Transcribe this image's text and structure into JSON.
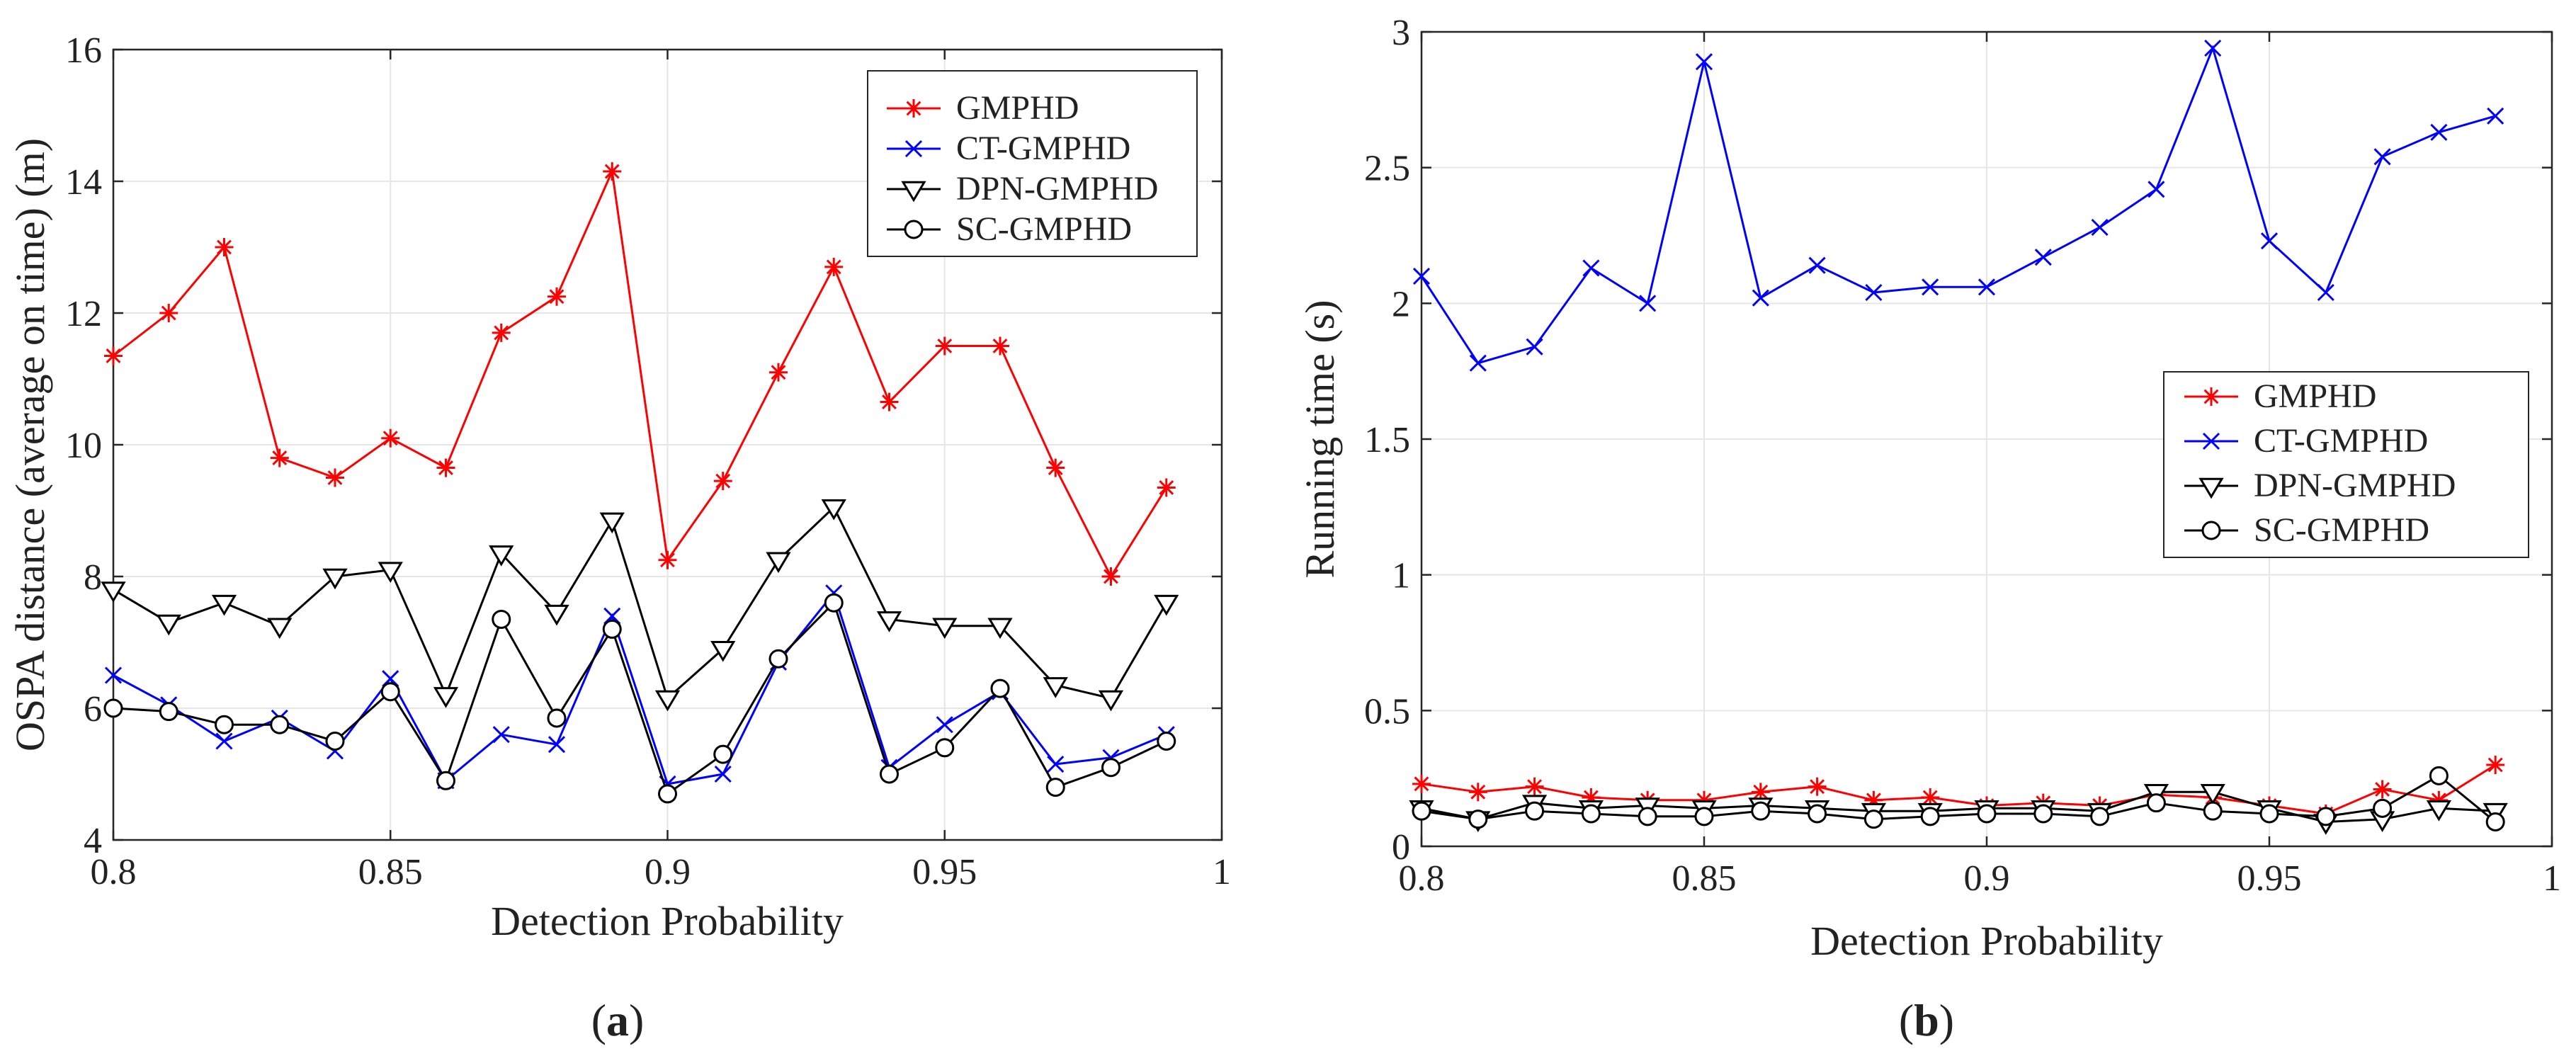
{
  "colors": {
    "red": "#ff0000",
    "blue": "#0000ff",
    "black": "#000000",
    "grid": "#e6e6e6"
  },
  "chart_data": [
    {
      "id": "a",
      "type": "line",
      "caption_open": "(",
      "caption_letter": "a",
      "caption_close": ")",
      "xlabel": "Detection Probability",
      "ylabel": "OSPA distance (average on time) (m)",
      "xlim": [
        0.8,
        1
      ],
      "ylim": [
        4,
        16
      ],
      "xticks": [
        0.8,
        0.85,
        0.9,
        0.95,
        1
      ],
      "xtick_labels": [
        "0.8",
        "0.85",
        "0.9",
        "0.95",
        "1"
      ],
      "yticks": [
        4,
        6,
        8,
        10,
        12,
        14,
        16
      ],
      "ytick_labels": [
        "4",
        "6",
        "8",
        "10",
        "12",
        "14",
        "16"
      ],
      "grid": true,
      "legend_position": "top-right",
      "x": [
        0.8,
        0.81,
        0.82,
        0.83,
        0.84,
        0.85,
        0.86,
        0.87,
        0.88,
        0.89,
        0.9,
        0.91,
        0.92,
        0.93,
        0.94,
        0.95,
        0.96,
        0.97,
        0.98,
        0.99
      ],
      "series": [
        {
          "name": "GMPHD",
          "color": "#ff0000",
          "marker": "asterisk",
          "values": [
            11.35,
            12.0,
            13.0,
            9.8,
            9.5,
            10.1,
            9.65,
            11.7,
            12.25,
            14.15,
            8.25,
            9.45,
            11.1,
            12.7,
            10.65,
            11.5,
            11.5,
            9.65,
            8.0,
            9.35
          ]
        },
        {
          "name": "CT-GMPHD",
          "color": "#0000ff",
          "marker": "cross",
          "values": [
            6.5,
            6.05,
            5.5,
            5.85,
            5.35,
            6.45,
            4.9,
            5.6,
            5.45,
            7.4,
            4.85,
            5.0,
            6.7,
            7.75,
            5.1,
            5.75,
            6.25,
            5.15,
            5.25,
            5.6
          ]
        },
        {
          "name": "DPN-GMPHD",
          "color": "#000000",
          "marker": "triangle-down",
          "values": [
            7.8,
            7.3,
            7.6,
            7.25,
            8.0,
            8.1,
            6.2,
            8.35,
            7.45,
            8.85,
            6.15,
            6.9,
            8.25,
            9.05,
            7.35,
            7.25,
            7.25,
            6.35,
            6.15,
            7.6
          ]
        },
        {
          "name": "SC-GMPHD",
          "color": "#000000",
          "marker": "circle",
          "values": [
            6.0,
            5.95,
            5.75,
            5.75,
            5.5,
            6.25,
            4.9,
            7.35,
            5.85,
            7.2,
            4.7,
            5.3,
            6.75,
            7.6,
            5.0,
            5.4,
            6.3,
            4.8,
            5.1,
            5.5
          ]
        }
      ]
    },
    {
      "id": "b",
      "type": "line",
      "caption_open": "(",
      "caption_letter": "b",
      "caption_close": ")",
      "xlabel": "Detection Probability",
      "ylabel": "Running time (s)",
      "xlim": [
        0.8,
        1
      ],
      "ylim": [
        0,
        3
      ],
      "xticks": [
        0.8,
        0.85,
        0.9,
        0.95,
        1
      ],
      "xtick_labels": [
        "0.8",
        "0.85",
        "0.9",
        "0.95",
        "1"
      ],
      "yticks": [
        0,
        0.5,
        1,
        1.5,
        2,
        2.5,
        3
      ],
      "ytick_labels": [
        "0",
        "0.5",
        "1",
        "1.5",
        "2",
        "2.5",
        "3"
      ],
      "grid": true,
      "legend_position": "center-right",
      "x": [
        0.8,
        0.81,
        0.82,
        0.83,
        0.84,
        0.85,
        0.86,
        0.87,
        0.88,
        0.89,
        0.9,
        0.91,
        0.92,
        0.93,
        0.94,
        0.95,
        0.96,
        0.97,
        0.98,
        0.99
      ],
      "series": [
        {
          "name": "GMPHD",
          "color": "#ff0000",
          "marker": "asterisk",
          "values": [
            0.23,
            0.2,
            0.22,
            0.18,
            0.17,
            0.17,
            0.2,
            0.22,
            0.17,
            0.18,
            0.15,
            0.16,
            0.15,
            0.19,
            0.18,
            0.15,
            0.12,
            0.21,
            0.17,
            0.3
          ]
        },
        {
          "name": "CT-GMPHD",
          "color": "#0000ff",
          "marker": "cross",
          "values": [
            2.1,
            1.78,
            1.84,
            2.13,
            2.0,
            2.89,
            2.02,
            2.14,
            2.04,
            2.06,
            2.06,
            2.17,
            2.28,
            2.42,
            2.94,
            2.23,
            2.04,
            2.54,
            2.63,
            2.69
          ]
        },
        {
          "name": "DPN-GMPHD",
          "color": "#000000",
          "marker": "triangle-down",
          "values": [
            0.14,
            0.1,
            0.16,
            0.14,
            0.15,
            0.14,
            0.15,
            0.14,
            0.13,
            0.13,
            0.14,
            0.14,
            0.13,
            0.2,
            0.2,
            0.14,
            0.09,
            0.1,
            0.14,
            0.13
          ]
        },
        {
          "name": "SC-GMPHD",
          "color": "#000000",
          "marker": "circle",
          "values": [
            0.13,
            0.1,
            0.13,
            0.12,
            0.11,
            0.11,
            0.13,
            0.12,
            0.1,
            0.11,
            0.12,
            0.12,
            0.11,
            0.16,
            0.13,
            0.12,
            0.11,
            0.14,
            0.26,
            0.09
          ]
        }
      ]
    }
  ]
}
